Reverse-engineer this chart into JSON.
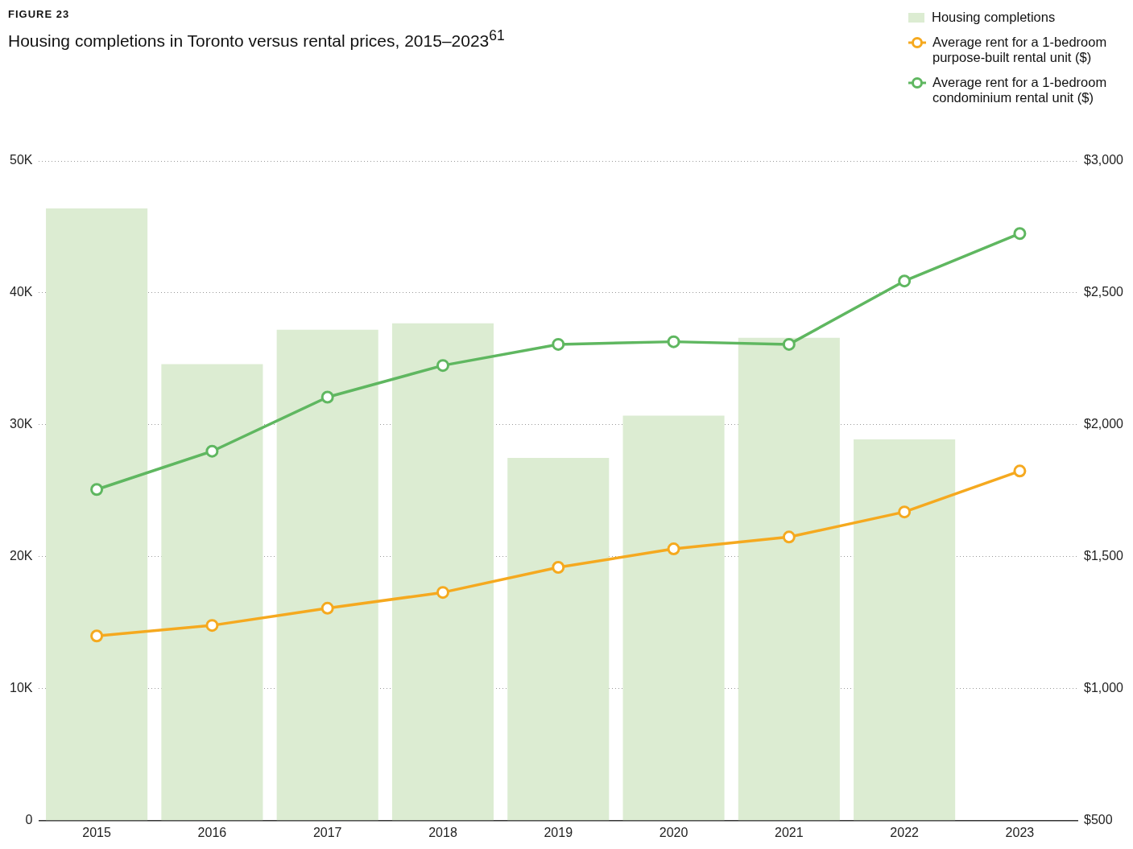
{
  "chart_data": {
    "type": "bar",
    "title": "Housing completions in Toronto versus rental prices, 2015–2023$^{61}$",
    "annotations": [
      "FIGURE 23"
    ],
    "categories": [
      "2015",
      "2016",
      "2017",
      "2018",
      "2019",
      "2020",
      "2021",
      "2022",
      "2023"
    ],
    "series": [
      {
        "name": "Housing completions",
        "color": "#dcecd2",
        "values": [
          46.4,
          34.6,
          37.2,
          37.7,
          27.5,
          30.7,
          36.6,
          28.9,
          null
        ]
      },
      {
        "name": "Average rent for a 1-bedroom purpose-built rental unit ($)",
        "type": "line",
        "axis": "y2",
        "color": "#f5a91f",
        "values": [
          1200,
          1240,
          1305,
          1365,
          1460,
          1530,
          1575,
          1670,
          1825
        ]
      },
      {
        "name": "Average rent for a 1-bedroom condominium rental unit ($)",
        "type": "line",
        "axis": "y2",
        "color": "#5fb760",
        "values": [
          1755,
          1900,
          2105,
          2225,
          2305,
          2315,
          2305,
          2545,
          2725
        ]
      }
    ],
    "ylim": [
      0,
      50
    ],
    "yticks": [
      {
        "value": 0,
        "label": "0"
      },
      {
        "value": 10,
        "label": "10K"
      },
      {
        "value": 20,
        "label": "20K"
      },
      {
        "value": 30,
        "label": "30K"
      },
      {
        "value": 40,
        "label": "40K"
      },
      {
        "value": 50,
        "label": "50K"
      }
    ],
    "y2lim": [
      500,
      3000
    ],
    "y2ticks": [
      {
        "value": 500,
        "label": "$500"
      },
      {
        "value": 1000,
        "label": "$1,000"
      },
      {
        "value": 1500,
        "label": "$1,500"
      },
      {
        "value": 2000,
        "label": "$2,000"
      },
      {
        "value": 2500,
        "label": "$2,500"
      },
      {
        "value": 3000,
        "label": "$3,000"
      }
    ],
    "grid": "y",
    "legend": "top right",
    "marker": "circle",
    "line_style": "solid"
  }
}
